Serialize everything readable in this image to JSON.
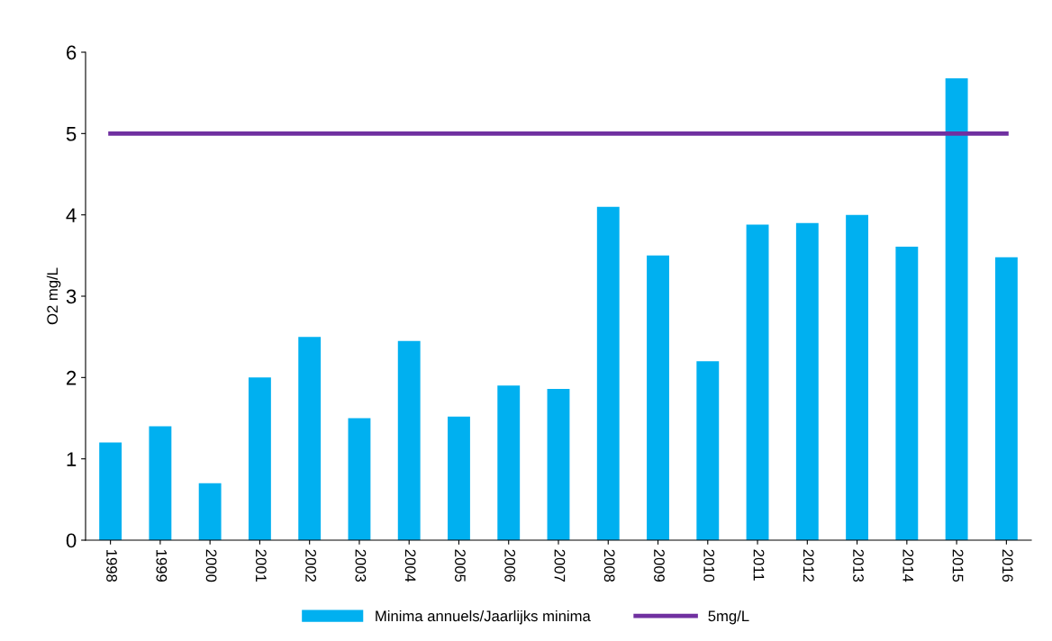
{
  "chart_data": {
    "type": "bar",
    "ylabel": "O2 mg/L",
    "categories": [
      "1998",
      "1999",
      "2000",
      "2001",
      "2002",
      "2003",
      "2004",
      "2005",
      "2006",
      "2007",
      "2008",
      "2009",
      "2010",
      "2011",
      "2012",
      "2013",
      "2014",
      "2015",
      "2016"
    ],
    "series": [
      {
        "name": "Minima annuels/Jaarlijks minima",
        "color": "#00b0f0",
        "values": [
          1.2,
          1.4,
          0.7,
          2.0,
          2.5,
          1.5,
          2.45,
          1.52,
          1.9,
          1.86,
          4.1,
          3.5,
          2.2,
          3.88,
          3.9,
          4.0,
          3.61,
          5.68,
          3.48
        ]
      },
      {
        "name": "5mg/L",
        "type": "line",
        "color": "#7030a0",
        "values": [
          5,
          5,
          5,
          5,
          5,
          5,
          5,
          5,
          5,
          5,
          5,
          5,
          5,
          5,
          5,
          5,
          5,
          5,
          5
        ]
      }
    ],
    "ylim": [
      0,
      6
    ],
    "yticks": [
      0,
      1,
      2,
      3,
      4,
      5,
      6
    ],
    "grid": false,
    "legend": "bottom",
    "marker": "none"
  }
}
